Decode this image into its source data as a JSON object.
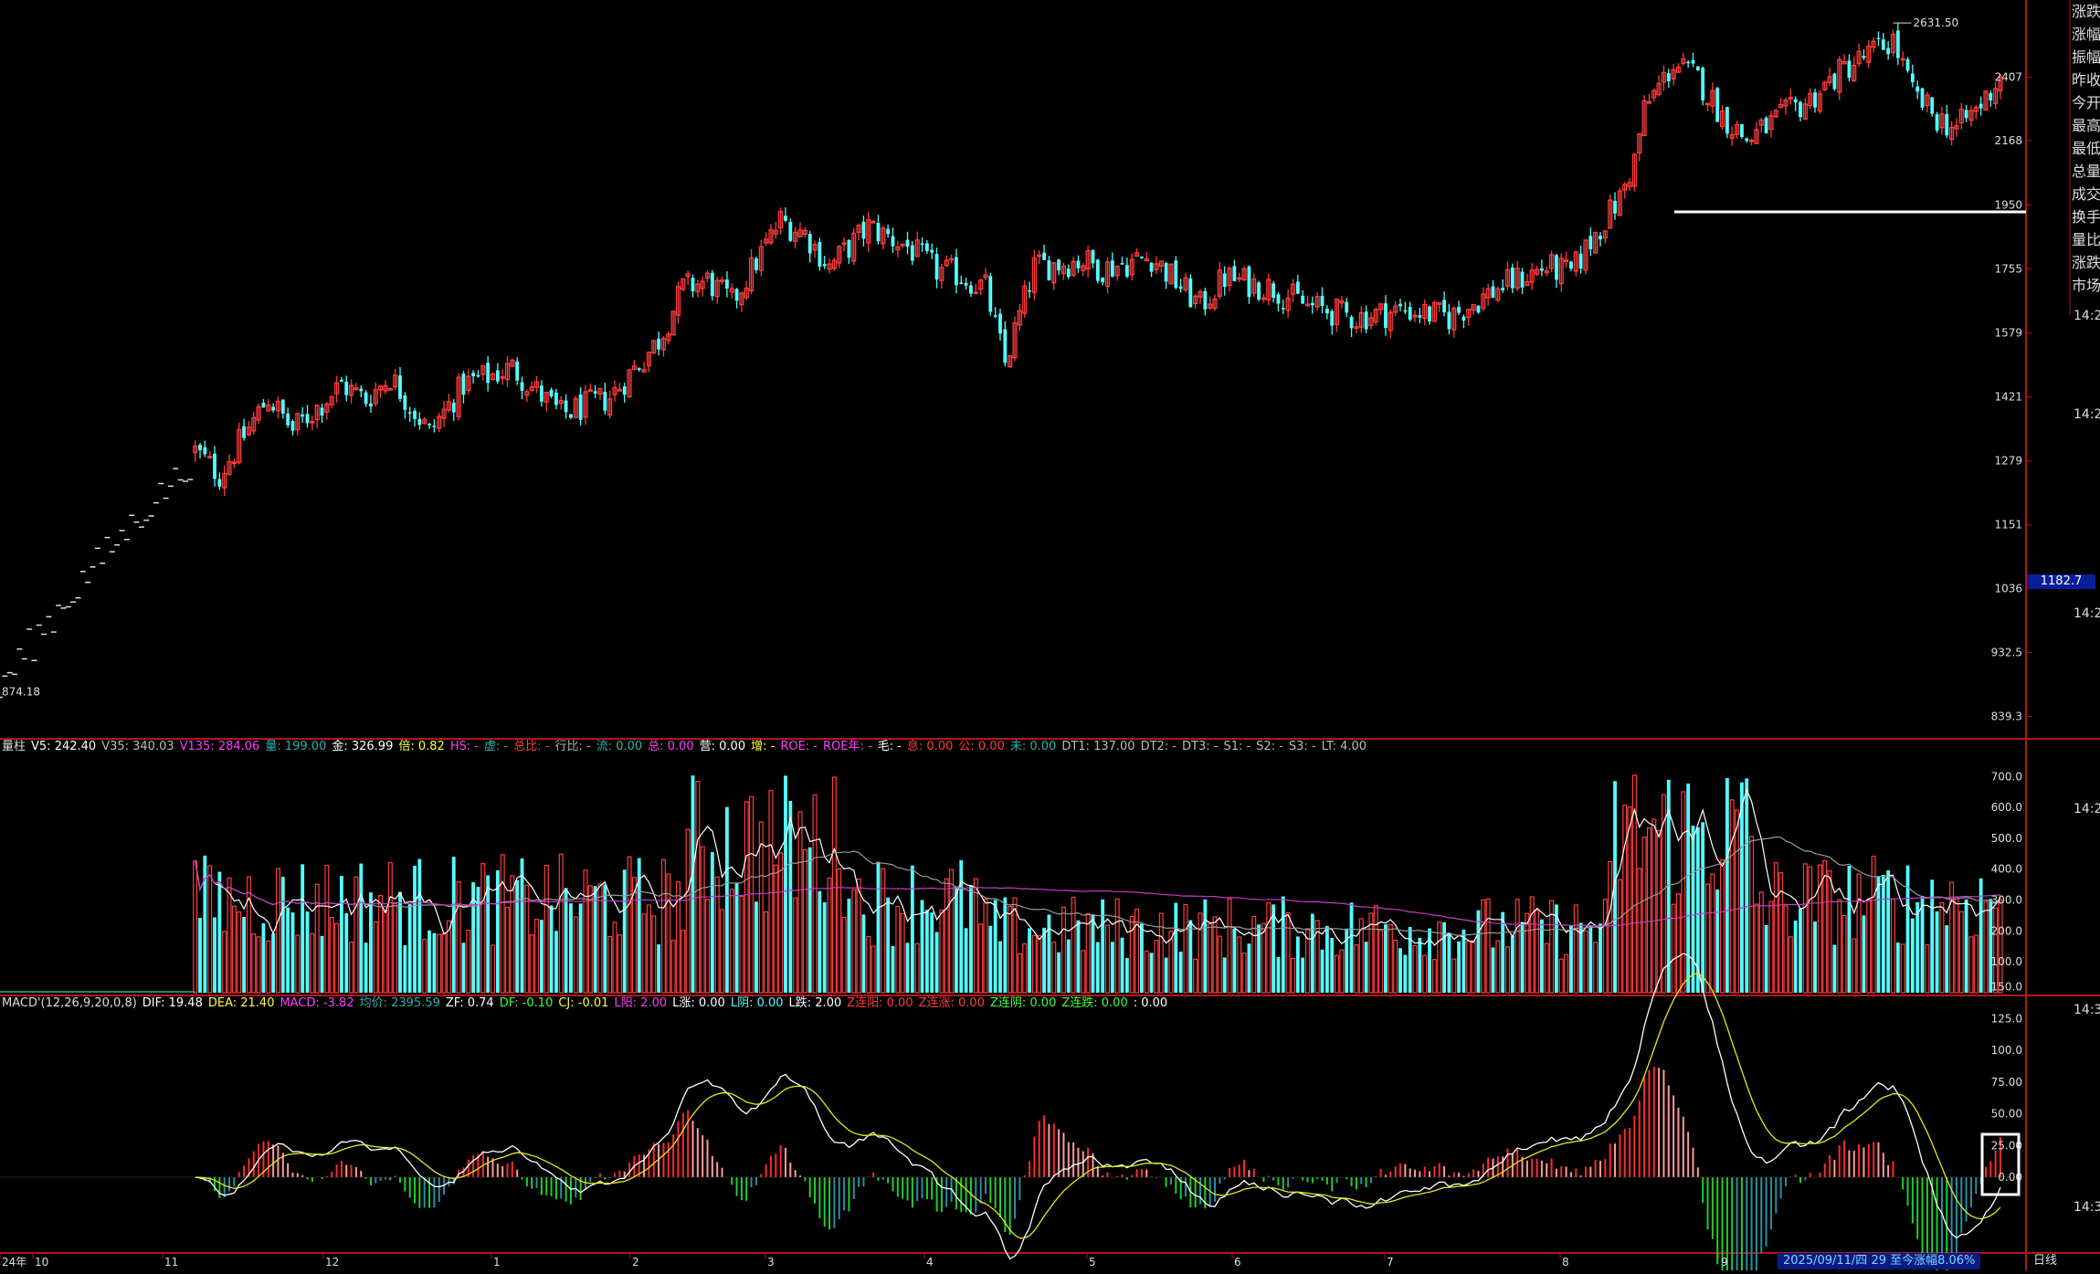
{
  "colors": {
    "up": "#ff3c3c",
    "down": "#54fcfc",
    "axis": "#b01818",
    "macd_pos": "#ff2a2a",
    "macd_pos_weak": "#ff9a9a",
    "macd_neg": "#1ecf2a",
    "macd_neg_weak": "#2a8fa0"
  },
  "price_panel": {
    "y_ticks": [
      "2407",
      "2168",
      "1950",
      "1755",
      "1579",
      "1421",
      "1279",
      "1151",
      "1036",
      "932.5",
      "839.3"
    ],
    "high_label": "2631.50",
    "low_label": "874.18",
    "current_price_tag": "1182.7",
    "time_labels": [
      "14:2",
      "14:2",
      "14:2",
      "14:2",
      "14:3"
    ]
  },
  "volume_panel": {
    "header": [
      {
        "t": "量柱",
        "c": "#dddddd"
      },
      {
        "t": "V5: 242.40",
        "c": "#ffffff"
      },
      {
        "t": "V35: 340.03",
        "c": "#bbbbbb"
      },
      {
        "t": "V135: 284.06",
        "c": "#ff3cff"
      },
      {
        "t": "量: 199.00",
        "c": "#2ab0a8"
      },
      {
        "t": "金: 326.99",
        "c": "#ffffff"
      },
      {
        "t": "倍: 0.82",
        "c": "#ffff3c"
      },
      {
        "t": "HS: -",
        "c": "#ff3cff"
      },
      {
        "t": "虚: -",
        "c": "#2ab0a8"
      },
      {
        "t": "总比: -",
        "c": "#ff3c3c"
      },
      {
        "t": "行比: -",
        "c": "#aaaaaa"
      },
      {
        "t": "流: 0.00",
        "c": "#2ab0a8"
      },
      {
        "t": "总: 0.00",
        "c": "#ff3cff"
      },
      {
        "t": "营: 0.00",
        "c": "#ffffff"
      },
      {
        "t": "增: -",
        "c": "#ffff3c"
      },
      {
        "t": "ROE: -",
        "c": "#ff3cff"
      },
      {
        "t": "ROE年: -",
        "c": "#ff3cff"
      },
      {
        "t": "毛: -",
        "c": "#ffffff"
      },
      {
        "t": "息: 0.00",
        "c": "#ff3c3c"
      },
      {
        "t": "公: 0.00",
        "c": "#ff3c3c"
      },
      {
        "t": "未: 0.00",
        "c": "#2ab0a8"
      },
      {
        "t": "DT1: 137.00",
        "c": "#bbbbbb"
      },
      {
        "t": "DT2: -",
        "c": "#bbbbbb"
      },
      {
        "t": "DT3: -",
        "c": "#bbbbbb"
      },
      {
        "t": "S1: -",
        "c": "#bbbbbb"
      },
      {
        "t": "S2: -",
        "c": "#bbbbbb"
      },
      {
        "t": "S3: -",
        "c": "#bbbbbb"
      },
      {
        "t": "LT: 4.00",
        "c": "#bbbbbb"
      }
    ],
    "y_ticks": [
      "700.0",
      "600.0",
      "500.0",
      "400.0",
      "300.0",
      "200.0",
      "100.0"
    ]
  },
  "macd_panel": {
    "header": [
      {
        "t": "MACD'(12,26,9,20,0,8)",
        "c": "#dddddd"
      },
      {
        "t": "DIF: 19.48",
        "c": "#ffffff"
      },
      {
        "t": "DEA: 21.40",
        "c": "#ffff3c"
      },
      {
        "t": "MACD: -3.82",
        "c": "#ff3cff"
      },
      {
        "t": "均价: 2395.59",
        "c": "#2ab0a8"
      },
      {
        "t": "ZF: 0.74",
        "c": "#ffffff"
      },
      {
        "t": "DF: -0.10",
        "c": "#3cff3c"
      },
      {
        "t": "CJ: -0.01",
        "c": "#ffff3c"
      },
      {
        "t": "L阳: 2.00",
        "c": "#ff3cff"
      },
      {
        "t": "L涨: 0.00",
        "c": "#ffffff"
      },
      {
        "t": "L阴: 0.00",
        "c": "#54fcfc"
      },
      {
        "t": "L跌: 2.00",
        "c": "#ffffff"
      },
      {
        "t": "Z连阳: 0.00",
        "c": "#ff3c3c"
      },
      {
        "t": "Z连涨: 0.00",
        "c": "#ff3c3c"
      },
      {
        "t": "Z连阴: 0.00",
        "c": "#3cff3c"
      },
      {
        "t": "Z连跌: 0.00",
        "c": "#3cff3c"
      },
      {
        "t": ": 0.00",
        "c": "#ffffff"
      }
    ],
    "y_ticks": [
      "150.0",
      "125.0",
      "100.0",
      "75.00",
      "50.00",
      "25.00",
      "0.00"
    ]
  },
  "x_axis": {
    "labels": [
      "24年",
      "10",
      "11",
      "12",
      "1",
      "2",
      "3",
      "4",
      "5",
      "6",
      "7",
      "8",
      "9"
    ]
  },
  "right_sidebar": [
    "涨跌",
    "涨幅",
    "振幅",
    "昨收",
    "今开",
    "最高",
    "最低",
    "总量",
    "成交",
    "换手",
    "量比",
    "涨跌",
    "市场"
  ],
  "footer": {
    "info": "2025/09/11/四 29 至今涨幅8.06%",
    "mode": "日线"
  },
  "chart_data": {
    "type": "candlestick",
    "price_scale": "log",
    "y_range": [
      820,
      2700
    ],
    "bars": 246,
    "anchors": [
      [
        40,
        1300,
        40
      ],
      [
        45,
        1250
      ],
      [
        55,
        1420
      ],
      [
        60,
        1345
      ],
      [
        70,
        1450
      ],
      [
        75,
        1415
      ],
      [
        80,
        1470
      ],
      [
        88,
        1340
      ],
      [
        95,
        1450
      ],
      [
        105,
        1490
      ],
      [
        115,
        1380
      ],
      [
        125,
        1420
      ],
      [
        135,
        1560
      ],
      [
        140,
        1700
      ],
      [
        145,
        1720
      ],
      [
        150,
        1660
      ],
      [
        160,
        1900
      ],
      [
        165,
        1860
      ],
      [
        170,
        1760
      ],
      [
        178,
        1880
      ],
      [
        186,
        1820
      ],
      [
        192,
        1750
      ],
      [
        196,
        1740
      ],
      [
        202,
        1700
      ],
      [
        206,
        1500
      ],
      [
        212,
        1760
      ],
      [
        222,
        1780
      ],
      [
        226,
        1755
      ],
      [
        236,
        1790
      ],
      [
        246,
        1650
      ],
      [
        251,
        1730
      ],
      [
        261,
        1700
      ],
      [
        268,
        1650
      ],
      [
        278,
        1620
      ],
      [
        288,
        1640
      ],
      [
        297,
        1620
      ],
      [
        307,
        1700
      ],
      [
        317,
        1760
      ],
      [
        322,
        1740
      ],
      [
        327,
        1860
      ],
      [
        332,
        1970
      ],
      [
        335,
        2100
      ],
      [
        337,
        2280
      ],
      [
        343,
        2460
      ],
      [
        348,
        2400
      ],
      [
        353,
        2260
      ],
      [
        358,
        2170
      ],
      [
        364,
        2240
      ],
      [
        371,
        2320
      ],
      [
        378,
        2440
      ],
      [
        385,
        2520
      ],
      [
        388,
        2560
      ],
      [
        392,
        2340
      ],
      [
        397,
        2250
      ],
      [
        401,
        2210
      ],
      [
        406,
        2300
      ],
      [
        410,
        2410
      ]
    ]
  }
}
